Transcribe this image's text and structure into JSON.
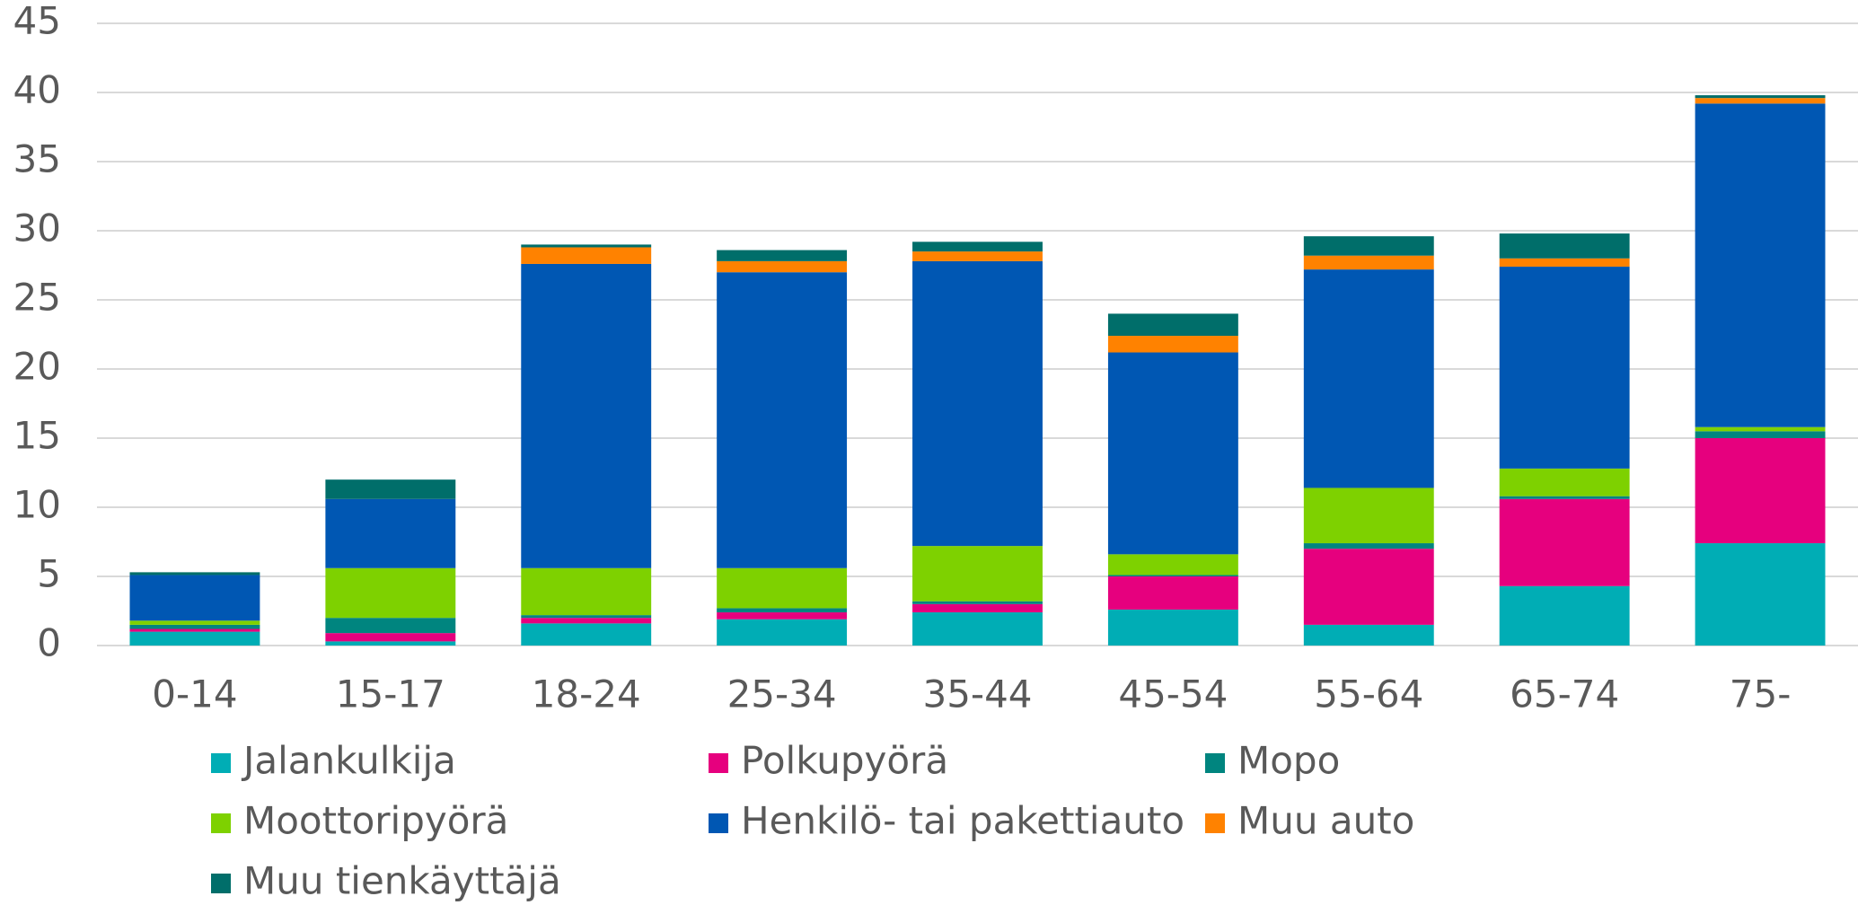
{
  "chart_data": {
    "type": "stacked_bar",
    "categories": [
      "0-14",
      "15-17",
      "18-24",
      "25-34",
      "35-44",
      "45-54",
      "55-64",
      "65-74",
      "75-"
    ],
    "series": [
      {
        "name": "Jalankulkija",
        "color": "#00adb5",
        "values": [
          1.0,
          0.3,
          1.6,
          1.9,
          2.4,
          2.6,
          1.5,
          4.3,
          7.4
        ]
      },
      {
        "name": "Polkupyörä",
        "color": "#e6007e",
        "values": [
          0.2,
          0.6,
          0.4,
          0.5,
          0.6,
          2.4,
          5.5,
          6.3,
          7.6
        ]
      },
      {
        "name": "Mopo",
        "color": "#00857f",
        "values": [
          0.3,
          1.1,
          0.2,
          0.3,
          0.2,
          0.1,
          0.4,
          0.2,
          0.5
        ]
      },
      {
        "name": "Moottoripyörä",
        "color": "#7ed100",
        "values": [
          0.3,
          3.6,
          3.4,
          2.9,
          4.0,
          1.5,
          4.0,
          2.0,
          0.3
        ]
      },
      {
        "name": "Henkilö- tai pakettiauto",
        "color": "#0057b3",
        "values": [
          3.3,
          5.0,
          22.0,
          21.4,
          20.6,
          14.6,
          15.8,
          14.6,
          23.4
        ]
      },
      {
        "name": "Muu auto",
        "color": "#ff8200",
        "values": [
          0.0,
          0.0,
          1.2,
          0.8,
          0.7,
          1.2,
          1.0,
          0.6,
          0.4
        ]
      },
      {
        "name": "Muu tienkäyttäjä",
        "color": "#006e6a",
        "values": [
          0.2,
          1.4,
          0.2,
          0.8,
          0.7,
          1.6,
          1.4,
          1.8,
          0.2
        ]
      }
    ],
    "ylim": [
      0,
      45
    ],
    "yticks": [
      0,
      5,
      10,
      15,
      20,
      25,
      30,
      35,
      40,
      45
    ],
    "grid": true
  }
}
